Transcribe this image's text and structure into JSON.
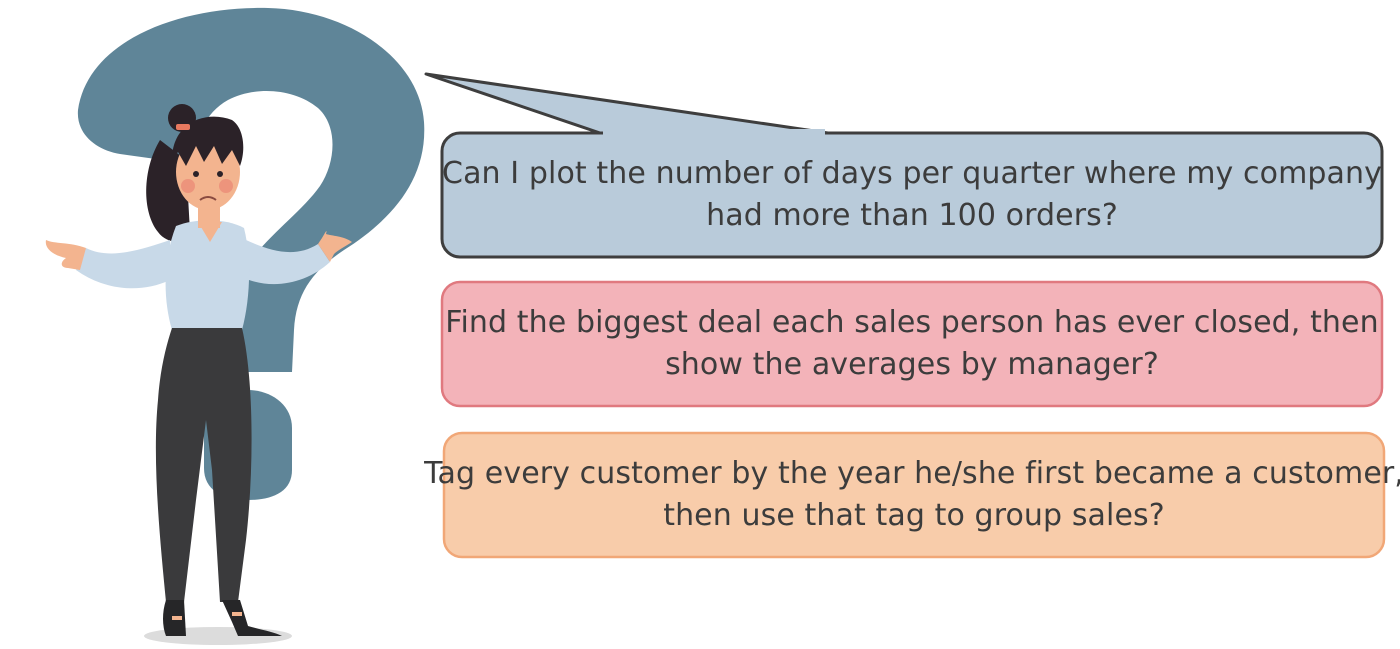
{
  "colors": {
    "question_mark": "#5f8598",
    "bubble_blue_fill": "#b9cbda",
    "bubble_blue_stroke": "#3e3e3e",
    "bubble_red_fill": "#f3b3b9",
    "bubble_red_stroke": "#e0797f",
    "bubble_orange_fill": "#f8ccaa",
    "bubble_orange_stroke": "#f1a777",
    "text": "#3c3c3c",
    "shirt": "#c8d9e8",
    "pants": "#3a3a3c",
    "skin": "#f3b48f",
    "hair": "#2b2228",
    "hair_tie": "#e8795f"
  },
  "figure": {
    "icon": "confused-woman-shrugging-icon",
    "background_icon": "question-mark-icon"
  },
  "questions": [
    {
      "line1": "Can I plot the number of days per quarter where my company",
      "line2": "had more than 100 orders?"
    },
    {
      "line1": "Find the biggest deal each sales person has ever closed, then",
      "line2": "show the averages by manager?"
    },
    {
      "line1": "Tag every customer by the year he/she first became a customer,",
      "line2": "then use that tag to group sales?"
    }
  ]
}
